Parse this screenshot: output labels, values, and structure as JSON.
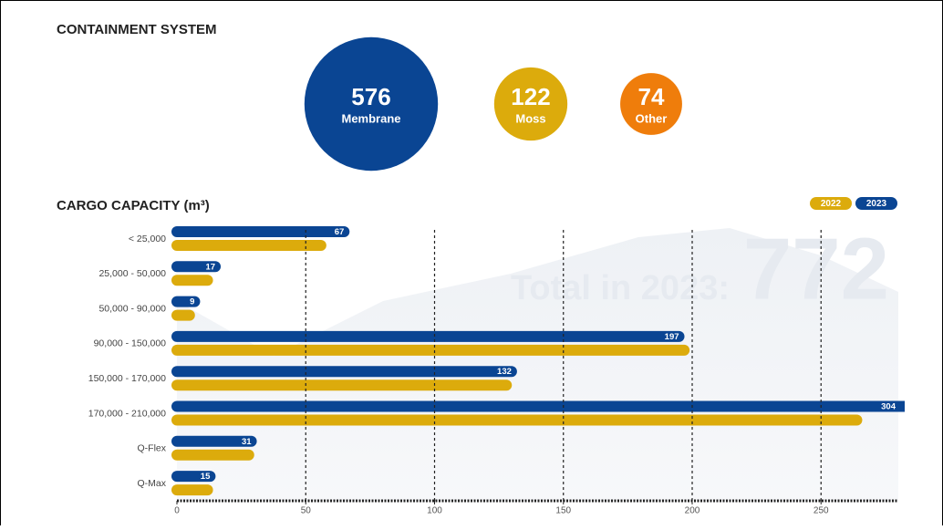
{
  "chart_data": [
    {
      "type": "bubble",
      "title": "CONTAINMENT SYSTEM",
      "categories": [
        "Membrane",
        "Moss",
        "Other"
      ],
      "values": [
        576,
        122,
        74
      ],
      "colors": [
        "#0a4593",
        "#dcab0c",
        "#ef7d0b"
      ]
    },
    {
      "type": "barh",
      "title": "CARGO CAPACITY (m³)",
      "categories": [
        "< 25,000",
        "25,000 - 50,000",
        "50,000 - 90,000",
        "90,000 - 150,000",
        "150,000 - 170,000",
        "170,000 - 210,000",
        "Q-Flex",
        "Q-Max"
      ],
      "series": [
        {
          "name": "2023",
          "color": "#0a4593",
          "values": [
            67,
            17,
            9,
            197,
            132,
            304,
            31,
            15
          ]
        },
        {
          "name": "2022",
          "color": "#dcab0c",
          "values": [
            58,
            14,
            7,
            199,
            130,
            266,
            30,
            14
          ]
        }
      ],
      "xlim": [
        0,
        280
      ],
      "xticks": [
        0,
        50,
        100,
        150,
        200,
        250
      ],
      "grid": true,
      "legend": "top-right",
      "annotation": "Total in 2023:",
      "total": 772
    }
  ]
}
